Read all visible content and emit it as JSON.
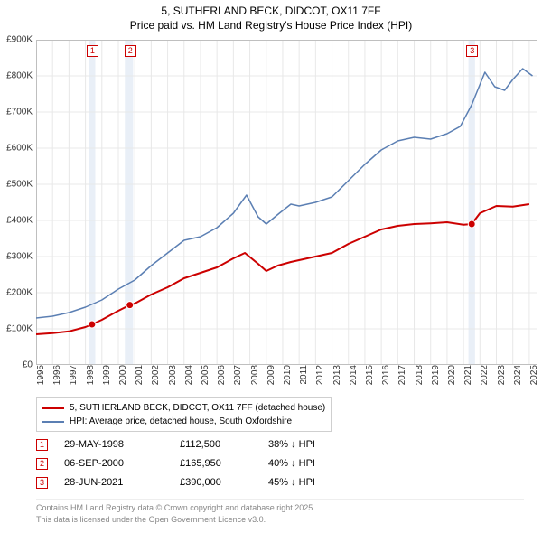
{
  "title": {
    "line1": "5, SUTHERLAND BECK, DIDCOT, OX11 7FF",
    "line2": "Price paid vs. HM Land Registry's House Price Index (HPI)"
  },
  "chart": {
    "type": "line",
    "background_color": "#ffffff",
    "grid_color": "#e8e8e8",
    "axis_color": "#bfbfbf",
    "x_min": 1995,
    "x_max": 2025.5,
    "x_tick_step": 1,
    "x_tick_labels": [
      "1995",
      "1996",
      "1997",
      "1998",
      "1999",
      "2000",
      "2001",
      "2002",
      "2003",
      "2004",
      "2005",
      "2006",
      "2007",
      "2008",
      "2009",
      "2010",
      "2011",
      "2012",
      "2013",
      "2014",
      "2015",
      "2016",
      "2017",
      "2018",
      "2019",
      "2020",
      "2021",
      "2022",
      "2023",
      "2024",
      "2025"
    ],
    "y_min": 0,
    "y_max": 900000,
    "y_tick_step": 100000,
    "y_tick_labels": [
      "£0",
      "£100K",
      "£200K",
      "£300K",
      "£400K",
      "£500K",
      "£600K",
      "£700K",
      "£800K",
      "£900K"
    ],
    "highlight_bands": [
      {
        "x_from": 1998.2,
        "x_to": 1998.6,
        "fill": "#e9eff7"
      },
      {
        "x_from": 2000.4,
        "x_to": 2000.9,
        "fill": "#e9eff7"
      },
      {
        "x_from": 2021.3,
        "x_to": 2021.7,
        "fill": "#e9eff7"
      }
    ],
    "series": [
      {
        "name": "5, SUTHERLAND BECK, DIDCOT, OX11 7FF (detached house)",
        "color": "#cc0000",
        "line_width": 2,
        "points": [
          [
            1995.0,
            85000
          ],
          [
            1996.0,
            88000
          ],
          [
            1997.0,
            93000
          ],
          [
            1998.0,
            105000
          ],
          [
            1998.4,
            112500
          ],
          [
            1999.0,
            125000
          ],
          [
            2000.0,
            150000
          ],
          [
            2000.7,
            165950
          ],
          [
            2001.0,
            170000
          ],
          [
            2002.0,
            195000
          ],
          [
            2003.0,
            215000
          ],
          [
            2004.0,
            240000
          ],
          [
            2005.0,
            255000
          ],
          [
            2006.0,
            270000
          ],
          [
            2007.0,
            295000
          ],
          [
            2007.7,
            310000
          ],
          [
            2008.5,
            280000
          ],
          [
            2009.0,
            260000
          ],
          [
            2009.7,
            275000
          ],
          [
            2010.5,
            285000
          ],
          [
            2011.0,
            290000
          ],
          [
            2012.0,
            300000
          ],
          [
            2013.0,
            310000
          ],
          [
            2014.0,
            335000
          ],
          [
            2015.0,
            355000
          ],
          [
            2016.0,
            375000
          ],
          [
            2017.0,
            385000
          ],
          [
            2018.0,
            390000
          ],
          [
            2019.0,
            392000
          ],
          [
            2020.0,
            395000
          ],
          [
            2021.0,
            388000
          ],
          [
            2021.5,
            390000
          ],
          [
            2022.0,
            420000
          ],
          [
            2023.0,
            440000
          ],
          [
            2024.0,
            438000
          ],
          [
            2025.0,
            445000
          ]
        ],
        "sale_markers": [
          {
            "x": 1998.4,
            "y": 112500
          },
          {
            "x": 2000.7,
            "y": 165950
          },
          {
            "x": 2021.5,
            "y": 390000
          }
        ]
      },
      {
        "name": "HPI: Average price, detached house, South Oxfordshire",
        "color": "#5b7fb3",
        "line_width": 1.5,
        "points": [
          [
            1995.0,
            130000
          ],
          [
            1996.0,
            135000
          ],
          [
            1997.0,
            145000
          ],
          [
            1998.0,
            160000
          ],
          [
            1999.0,
            180000
          ],
          [
            2000.0,
            210000
          ],
          [
            2001.0,
            235000
          ],
          [
            2002.0,
            275000
          ],
          [
            2003.0,
            310000
          ],
          [
            2004.0,
            345000
          ],
          [
            2005.0,
            355000
          ],
          [
            2006.0,
            380000
          ],
          [
            2007.0,
            420000
          ],
          [
            2007.8,
            470000
          ],
          [
            2008.5,
            410000
          ],
          [
            2009.0,
            390000
          ],
          [
            2009.8,
            420000
          ],
          [
            2010.5,
            445000
          ],
          [
            2011.0,
            440000
          ],
          [
            2012.0,
            450000
          ],
          [
            2013.0,
            465000
          ],
          [
            2014.0,
            510000
          ],
          [
            2015.0,
            555000
          ],
          [
            2016.0,
            595000
          ],
          [
            2017.0,
            620000
          ],
          [
            2018.0,
            630000
          ],
          [
            2019.0,
            625000
          ],
          [
            2020.0,
            640000
          ],
          [
            2020.8,
            660000
          ],
          [
            2021.5,
            720000
          ],
          [
            2022.3,
            810000
          ],
          [
            2022.9,
            770000
          ],
          [
            2023.5,
            760000
          ],
          [
            2024.0,
            790000
          ],
          [
            2024.6,
            820000
          ],
          [
            2025.2,
            800000
          ]
        ]
      }
    ],
    "chart_markers": [
      {
        "label": "1",
        "x": 1998.4,
        "color": "#cc0000"
      },
      {
        "label": "2",
        "x": 2000.7,
        "color": "#cc0000"
      },
      {
        "label": "3",
        "x": 2021.5,
        "color": "#cc0000"
      }
    ]
  },
  "legend": {
    "items": [
      {
        "label": "5, SUTHERLAND BECK, DIDCOT, OX11 7FF (detached house)",
        "color": "#cc0000"
      },
      {
        "label": "HPI: Average price, detached house, South Oxfordshire",
        "color": "#5b7fb3"
      }
    ]
  },
  "sales_table": {
    "rows": [
      {
        "marker": "1",
        "marker_color": "#cc0000",
        "date": "29-MAY-1998",
        "price": "£112,500",
        "delta": "38% ↓ HPI"
      },
      {
        "marker": "2",
        "marker_color": "#cc0000",
        "date": "06-SEP-2000",
        "price": "£165,950",
        "delta": "40% ↓ HPI"
      },
      {
        "marker": "3",
        "marker_color": "#cc0000",
        "date": "28-JUN-2021",
        "price": "£390,000",
        "delta": "45% ↓ HPI"
      }
    ]
  },
  "footer": {
    "line1": "Contains HM Land Registry data © Crown copyright and database right 2025.",
    "line2": "This data is licensed under the Open Government Licence v3.0."
  }
}
